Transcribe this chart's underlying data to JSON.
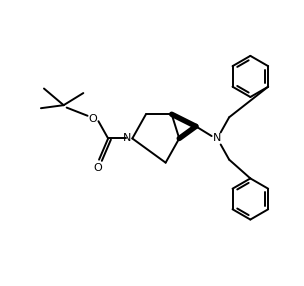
{
  "bg_color": "#ffffff",
  "line_color": "#000000",
  "linewidth": 1.4,
  "figsize": [
    3.04,
    2.86
  ],
  "dpi": 100,
  "xlim": [
    0,
    10
  ],
  "ylim": [
    0,
    9.4
  ]
}
